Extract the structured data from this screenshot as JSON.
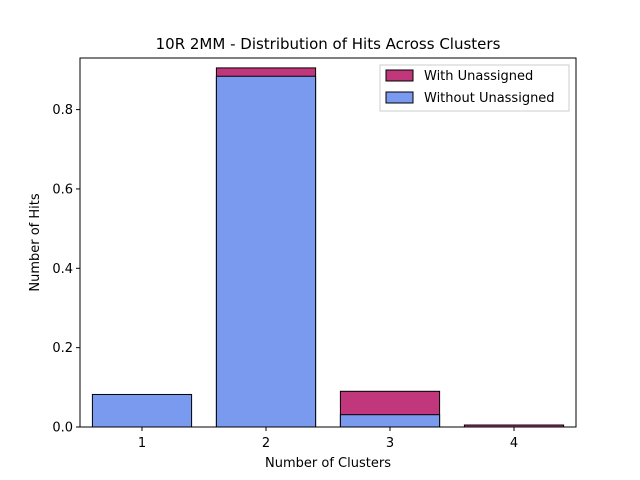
{
  "chart_data": {
    "type": "bar",
    "title": "10R 2MM - Distribution of Hits Across Clusters",
    "xlabel": "Number of Clusters",
    "ylabel": "Number of Hits",
    "categories": [
      "1",
      "2",
      "3",
      "4"
    ],
    "ylim": [
      0,
      0.93
    ],
    "yticks": [
      "0.0",
      "0.2",
      "0.4",
      "0.6",
      "0.8"
    ],
    "overlay": true,
    "grid": false,
    "legend_position": "top-right",
    "series": [
      {
        "name": "With Unassigned",
        "values": [
          0.0,
          0.905,
          0.09,
          0.005
        ],
        "color": "#c0377b"
      },
      {
        "name": "Without Unassigned",
        "values": [
          0.082,
          0.884,
          0.031,
          0.0
        ],
        "color": "#7a9af0"
      }
    ]
  }
}
